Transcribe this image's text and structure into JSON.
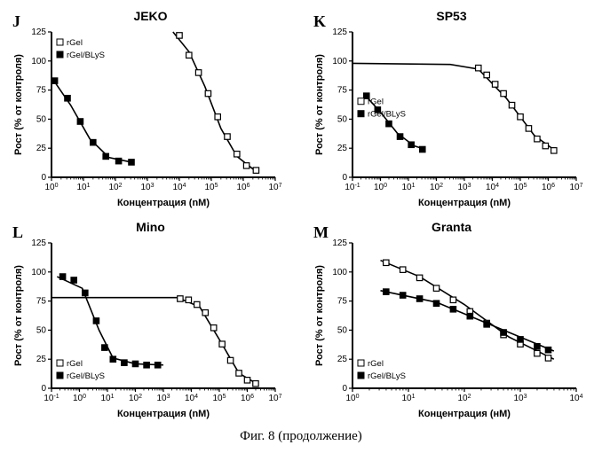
{
  "caption": "Фиг. 8 (продолжение)",
  "axis_labels": {
    "x": "Концентрация (nM)",
    "x_alt": "Концентрация (нМ)",
    "y": "Рост (% от контроля)"
  },
  "legend": {
    "s1": "rGel",
    "s2": "rGel/BLyS"
  },
  "colors": {
    "axis": "#000000",
    "line": "#000000",
    "bg": "#ffffff",
    "fill_open": "#ffffff",
    "fill_solid": "#000000"
  },
  "style": {
    "axis_fontsize": 10,
    "label_fontsize": 11,
    "title_fontsize": 14,
    "letter_fontsize": 18,
    "marker_size": 3.2,
    "line_width": 1.8,
    "curve_width": 1.6,
    "tick_len": 4
  },
  "panels": [
    {
      "letter": "J",
      "title": "JEKO",
      "xlog_min": 0,
      "xlog_max": 7,
      "ylim": [
        0,
        125
      ],
      "ytick_step": 25,
      "legend_pos": "top-left",
      "series": [
        {
          "key": "s1",
          "marker": "open-square",
          "points": [
            {
              "x": 4.0,
              "y": 122
            },
            {
              "x": 4.3,
              "y": 105
            },
            {
              "x": 4.6,
              "y": 90
            },
            {
              "x": 4.9,
              "y": 72
            },
            {
              "x": 5.2,
              "y": 52
            },
            {
              "x": 5.5,
              "y": 35
            },
            {
              "x": 5.8,
              "y": 20
            },
            {
              "x": 6.1,
              "y": 10
            },
            {
              "x": 6.4,
              "y": 6
            }
          ],
          "curve": [
            {
              "x": 3.8,
              "y": 125
            },
            {
              "x": 4.3,
              "y": 108
            },
            {
              "x": 4.8,
              "y": 78
            },
            {
              "x": 5.3,
              "y": 42
            },
            {
              "x": 5.8,
              "y": 18
            },
            {
              "x": 6.4,
              "y": 5
            }
          ]
        },
        {
          "key": "s2",
          "marker": "solid-square",
          "points": [
            {
              "x": 0.1,
              "y": 83
            },
            {
              "x": 0.5,
              "y": 68
            },
            {
              "x": 0.9,
              "y": 48
            },
            {
              "x": 1.3,
              "y": 30
            },
            {
              "x": 1.7,
              "y": 18
            },
            {
              "x": 2.1,
              "y": 14
            },
            {
              "x": 2.5,
              "y": 13
            }
          ],
          "curve": [
            {
              "x": 0.0,
              "y": 86
            },
            {
              "x": 0.6,
              "y": 62
            },
            {
              "x": 1.2,
              "y": 33
            },
            {
              "x": 1.8,
              "y": 17
            },
            {
              "x": 2.5,
              "y": 13
            }
          ]
        }
      ]
    },
    {
      "letter": "K",
      "title": "SP53",
      "xlog_min": -1,
      "xlog_max": 7,
      "ylim": [
        0,
        125
      ],
      "ytick_step": 25,
      "legend_pos": "mid-left",
      "series": [
        {
          "key": "s1",
          "marker": "open-square",
          "points": [
            {
              "x": 3.5,
              "y": 94
            },
            {
              "x": 3.8,
              "y": 88
            },
            {
              "x": 4.1,
              "y": 80
            },
            {
              "x": 4.4,
              "y": 72
            },
            {
              "x": 4.7,
              "y": 62
            },
            {
              "x": 5.0,
              "y": 52
            },
            {
              "x": 5.3,
              "y": 42
            },
            {
              "x": 5.6,
              "y": 33
            },
            {
              "x": 5.9,
              "y": 27
            },
            {
              "x": 6.2,
              "y": 23
            }
          ],
          "curve": [
            {
              "x": -1,
              "y": 98
            },
            {
              "x": 2.5,
              "y": 97
            },
            {
              "x": 3.5,
              "y": 93
            },
            {
              "x": 4.5,
              "y": 68
            },
            {
              "x": 5.5,
              "y": 36
            },
            {
              "x": 6.3,
              "y": 22
            }
          ]
        },
        {
          "key": "s2",
          "marker": "solid-square",
          "points": [
            {
              "x": -0.5,
              "y": 70
            },
            {
              "x": -0.1,
              "y": 58
            },
            {
              "x": 0.3,
              "y": 46
            },
            {
              "x": 0.7,
              "y": 35
            },
            {
              "x": 1.1,
              "y": 28
            },
            {
              "x": 1.5,
              "y": 24
            }
          ],
          "curve": [
            {
              "x": -0.6,
              "y": 72
            },
            {
              "x": 0.0,
              "y": 56
            },
            {
              "x": 0.6,
              "y": 38
            },
            {
              "x": 1.2,
              "y": 27
            },
            {
              "x": 1.6,
              "y": 24
            }
          ]
        }
      ]
    },
    {
      "letter": "L",
      "title": "Mino",
      "xlog_min": -1,
      "xlog_max": 7,
      "ylim": [
        0,
        125
      ],
      "ytick_step": 25,
      "legend_pos": "bottom-left",
      "series": [
        {
          "key": "s1",
          "marker": "open-square",
          "points": [
            {
              "x": 3.6,
              "y": 77
            },
            {
              "x": 3.9,
              "y": 76
            },
            {
              "x": 4.2,
              "y": 72
            },
            {
              "x": 4.5,
              "y": 65
            },
            {
              "x": 4.8,
              "y": 52
            },
            {
              "x": 5.1,
              "y": 38
            },
            {
              "x": 5.4,
              "y": 24
            },
            {
              "x": 5.7,
              "y": 13
            },
            {
              "x": 6.0,
              "y": 7
            },
            {
              "x": 6.3,
              "y": 4
            }
          ],
          "curve": [
            {
              "x": -1,
              "y": 78
            },
            {
              "x": 3.5,
              "y": 78
            },
            {
              "x": 4.3,
              "y": 70
            },
            {
              "x": 5.0,
              "y": 42
            },
            {
              "x": 5.7,
              "y": 13
            },
            {
              "x": 6.4,
              "y": 3
            }
          ]
        },
        {
          "key": "s2",
          "marker": "solid-square",
          "points": [
            {
              "x": -0.6,
              "y": 96
            },
            {
              "x": -0.2,
              "y": 93
            },
            {
              "x": 0.2,
              "y": 82
            },
            {
              "x": 0.6,
              "y": 58
            },
            {
              "x": 0.9,
              "y": 35
            },
            {
              "x": 1.2,
              "y": 25
            },
            {
              "x": 1.6,
              "y": 22
            },
            {
              "x": 2.0,
              "y": 21
            },
            {
              "x": 2.4,
              "y": 20
            },
            {
              "x": 2.8,
              "y": 20
            }
          ],
          "curve": [
            {
              "x": -0.8,
              "y": 96
            },
            {
              "x": 0.1,
              "y": 86
            },
            {
              "x": 0.7,
              "y": 50
            },
            {
              "x": 1.2,
              "y": 26
            },
            {
              "x": 2.0,
              "y": 21
            },
            {
              "x": 3.0,
              "y": 20
            }
          ]
        }
      ]
    },
    {
      "letter": "M",
      "title": "Granta",
      "xlog_min": 0,
      "xlog_max": 4,
      "ylim": [
        0,
        125
      ],
      "ytick_step": 25,
      "x_label_key": "x_alt",
      "legend_pos": "bottom-left",
      "series": [
        {
          "key": "s1",
          "marker": "open-square",
          "points": [
            {
              "x": 0.6,
              "y": 108
            },
            {
              "x": 0.9,
              "y": 102
            },
            {
              "x": 1.2,
              "y": 95
            },
            {
              "x": 1.5,
              "y": 86
            },
            {
              "x": 1.8,
              "y": 76
            },
            {
              "x": 2.1,
              "y": 66
            },
            {
              "x": 2.4,
              "y": 56
            },
            {
              "x": 2.7,
              "y": 46
            },
            {
              "x": 3.0,
              "y": 38
            },
            {
              "x": 3.3,
              "y": 30
            },
            {
              "x": 3.5,
              "y": 26
            }
          ],
          "curve": [
            {
              "x": 0.5,
              "y": 110
            },
            {
              "x": 1.2,
              "y": 96
            },
            {
              "x": 2.0,
              "y": 72
            },
            {
              "x": 2.8,
              "y": 44
            },
            {
              "x": 3.6,
              "y": 25
            }
          ]
        },
        {
          "key": "s2",
          "marker": "solid-square",
          "points": [
            {
              "x": 0.6,
              "y": 83
            },
            {
              "x": 0.9,
              "y": 80
            },
            {
              "x": 1.2,
              "y": 77
            },
            {
              "x": 1.5,
              "y": 73
            },
            {
              "x": 1.8,
              "y": 68
            },
            {
              "x": 2.1,
              "y": 62
            },
            {
              "x": 2.4,
              "y": 55
            },
            {
              "x": 2.7,
              "y": 48
            },
            {
              "x": 3.0,
              "y": 42
            },
            {
              "x": 3.3,
              "y": 36
            },
            {
              "x": 3.5,
              "y": 33
            }
          ],
          "curve": [
            {
              "x": 0.5,
              "y": 84
            },
            {
              "x": 1.5,
              "y": 74
            },
            {
              "x": 2.5,
              "y": 54
            },
            {
              "x": 3.6,
              "y": 32
            }
          ]
        }
      ]
    }
  ]
}
